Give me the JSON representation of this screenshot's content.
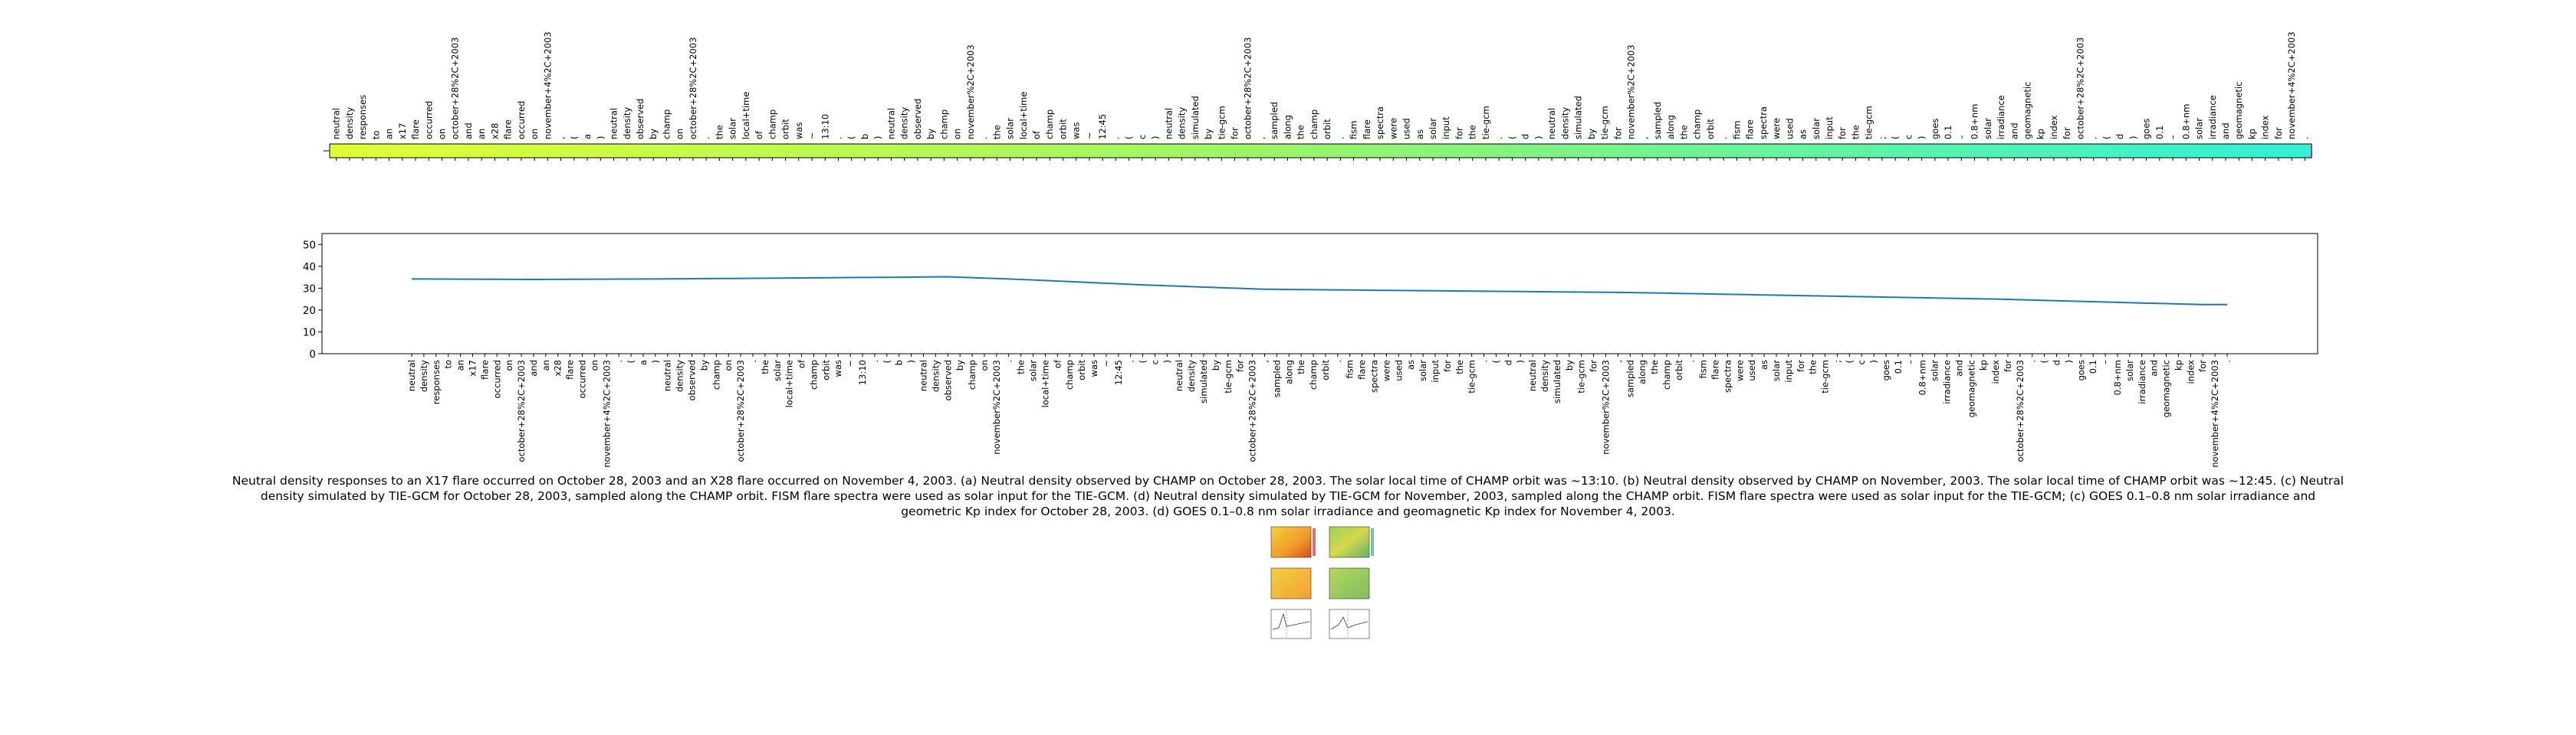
{
  "figure": {
    "caption": "Neutral density responses to an X17 flare occurred on October 28, 2003 and an X28 flare occurred on November 4, 2003. (a) Neutral density observed by CHAMP on October 28, 2003. The solar local time of CHAMP orbit was ~13:10. (b) Neutral density observed by CHAMP on November, 2003. The solar local time of CHAMP orbit was ~12:45. (c) Neutral density simulated by TIE-GCM for October 28, 2003, sampled along the CHAMP orbit. FISM flare spectra were used as solar input for the TIE-GCM. (d) Neutral density simulated by TIE-GCM for November, 2003, sampled along the CHAMP orbit. FISM flare spectra were used as solar input for the TIE-GCM; (c) GOES 0.1–0.8 nm solar irradiance and geometric Kp index for October 28, 2003. (d) GOES 0.1–0.8 nm solar irradiance and geomagnetic Kp index for November 4, 2003.",
    "thumbnail": "figure-thumbnail-image"
  },
  "colors": {
    "line": "#1f77b4",
    "heat_left": "#dfff33",
    "heat_mid": "#95f56a",
    "heat_right": "#2ff2d6",
    "edge_left": "#555555",
    "edge_right": "#e0208a"
  },
  "chart_data": [
    {
      "type": "heatmap",
      "tokens": [
        "neutral",
        "density",
        "responses",
        "to",
        "an",
        "x17",
        "flare",
        "occurred",
        "on",
        "october+28%2C+2003",
        "and",
        "an",
        "x28",
        "flare",
        "occurred",
        "on",
        "november+4%2C+2003",
        ",",
        "(",
        "a",
        ")",
        "neutral",
        "density",
        "observed",
        "by",
        "champ",
        "on",
        "october+28%2C+2003",
        ".",
        "the",
        "solar",
        "local+time",
        "of",
        "champ",
        "orbit",
        "was",
        "~",
        "13:10",
        ".",
        "(",
        "b",
        ")",
        "neutral",
        "density",
        "observed",
        "by",
        "champ",
        "on",
        "november%2C+2003",
        ".",
        "the",
        "solar",
        "local+time",
        "of",
        "champ",
        "orbit",
        "was",
        "~",
        "12:45",
        ".",
        "(",
        "c",
        ")",
        "neutral",
        "density",
        "simulated",
        "by",
        "tie-gcm",
        "for",
        "october+28%2C+2003",
        ",",
        "sampled",
        "along",
        "the",
        "champ",
        "orbit",
        ".",
        "fism",
        "flare",
        "spectra",
        "were",
        "used",
        "as",
        "solar",
        "input",
        "for",
        "the",
        "tie-gcm",
        ".",
        "(",
        "d",
        ")",
        "neutral",
        "density",
        "simulated",
        "by",
        "tie-gcm",
        "for",
        "november%2C+2003",
        ",",
        "sampled",
        "along",
        "the",
        "champ",
        "orbit",
        ".",
        "fism",
        "flare",
        "spectra",
        "were",
        "used",
        "as",
        "solar",
        "input",
        "for",
        "the",
        "tie-gcm",
        ";",
        "(",
        "c",
        ")",
        "goes",
        "0.1",
        "–",
        "0.8+nm",
        "solar",
        "irradiance",
        "and",
        "geomagnetic",
        "kp",
        "index",
        "for",
        "october+28%2C+2003",
        ".",
        "(",
        "d",
        ")",
        "goes",
        "0.1",
        "–",
        "0.8+nm",
        "solar",
        "irradiance",
        "and",
        "geomagnetic",
        "kp",
        "index",
        "for",
        "november+4%2C+2003",
        "."
      ]
    },
    {
      "type": "line",
      "ylim": [
        0,
        55
      ],
      "yticks": [
        0,
        10,
        20,
        30,
        40,
        50
      ],
      "categories": [
        "neutral",
        "density",
        "responses",
        "to",
        "an",
        "x17",
        "flare",
        "occurred",
        "on",
        "october+28%2C+2003",
        "and",
        "an",
        "x28",
        "flare",
        "occurred",
        "on",
        "november+4%2C+2003",
        ".",
        "(",
        "a",
        ")",
        "neutral",
        "density",
        "observed",
        "by",
        "champ",
        "on",
        "october+28%2C+2003",
        ".",
        "the",
        "solar",
        "local+time",
        "of",
        "champ",
        "orbit",
        "was",
        "~",
        "13:10",
        ".",
        "(",
        "b",
        ")",
        "neutral",
        "density",
        "observed",
        "by",
        "champ",
        "on",
        "november%2C+2003",
        ".",
        "the",
        "solar",
        "local+time",
        "of",
        "champ",
        "orbit",
        "was",
        "~",
        "12:45",
        ".",
        "(",
        "c",
        ")",
        "neutral",
        "density",
        "simulated",
        "by",
        "tie-gcm",
        "for",
        "october+28%2C+2003",
        ",",
        "sampled",
        "along",
        "the",
        "champ",
        "orbit",
        ".",
        "fism",
        "flare",
        "spectra",
        "were",
        "used",
        "as",
        "solar",
        "input",
        "for",
        "the",
        "tie-gcm",
        ".",
        "(",
        "d",
        ")",
        "neutral",
        "density",
        "simulated",
        "by",
        "tie-gcm",
        "for",
        "november%2C+2003",
        ",",
        "sampled",
        "along",
        "the",
        "champ",
        "orbit",
        ".",
        "fism",
        "flare",
        "spectra",
        "were",
        "used",
        "as",
        "solar",
        "input",
        "for",
        "the",
        "tie-gcm",
        ";",
        "(",
        "c",
        ")",
        "goes",
        "0.1",
        "–",
        "0.8+nm",
        "solar",
        "irradiance",
        "and",
        "geomagnetic",
        "kp",
        "index",
        "for",
        "october+28%2C+2003",
        ".",
        "(",
        "d",
        ")",
        "goes",
        "0.1",
        "–",
        "0.8+nm",
        "solar",
        "irradiance",
        "and",
        "geomagnetic",
        "kp",
        "index",
        "for",
        "november+4%2C+2003",
        "."
      ],
      "series": [
        {
          "anchors": [
            [
              0,
              34.2
            ],
            [
              10,
              34.0
            ],
            [
              20,
              34.2
            ],
            [
              30,
              34.6
            ],
            [
              40,
              35.0
            ],
            [
              44,
              35.2
            ],
            [
              50,
              34.0
            ],
            [
              60,
              31.5
            ],
            [
              70,
              29.5
            ],
            [
              80,
              29.0
            ],
            [
              90,
              28.5
            ],
            [
              100,
              28.0
            ],
            [
              110,
              27.0
            ],
            [
              120,
              26.0
            ],
            [
              130,
              25.0
            ],
            [
              140,
              23.5
            ],
            [
              147,
              22.5
            ]
          ]
        }
      ]
    }
  ]
}
